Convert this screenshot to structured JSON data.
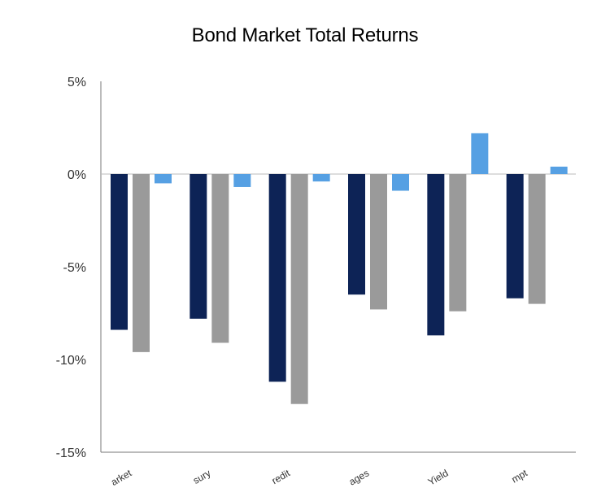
{
  "chart_data": {
    "type": "bar",
    "title": "Bond Market Total Returns",
    "xlabel": "",
    "ylabel": "",
    "categories": [
      "arket",
      "sury",
      "redit",
      "ages",
      "Yield",
      "mpt"
    ],
    "series": [
      {
        "values": [
          -8.4,
          -7.8,
          -11.2,
          -6.5,
          -8.7,
          -6.7
        ],
        "color": "#0d2356"
      },
      {
        "values": [
          -9.6,
          -9.1,
          -12.4,
          -7.3,
          -7.4,
          -7.0
        ],
        "color": "#9a9a9a"
      },
      {
        "values": [
          -0.5,
          -0.7,
          -0.4,
          -0.9,
          2.2,
          0.4
        ],
        "color": "#56a0e3"
      }
    ],
    "ylim": [
      -15,
      5
    ],
    "yticks": [
      5,
      0,
      -5,
      -10,
      -15
    ],
    "ytick_labels": [
      "5%",
      "0%",
      "-5%",
      "-10%",
      "-15%"
    ],
    "grid": false,
    "legend": "none"
  }
}
